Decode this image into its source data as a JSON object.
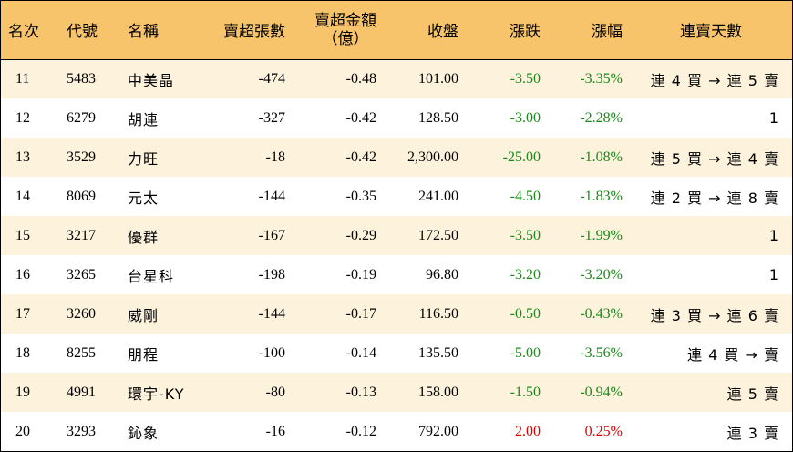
{
  "headers": {
    "rank": "名次",
    "code": "代號",
    "name": "名稱",
    "net_sell_qty": "賣超張數",
    "net_sell_amount_line1": "賣超金額",
    "net_sell_amount_line2": "（億）",
    "close": "收盤",
    "change": "漲跌",
    "change_pct": "漲幅",
    "streak": "連賣天數"
  },
  "colors": {
    "down": "#1a8a1a",
    "up": "#e00000",
    "header_bg": "#f7c36b",
    "stripe_bg": "#fdf2dc"
  },
  "rows": [
    {
      "rank": "11",
      "code": "5483",
      "name": "中美晶",
      "qty": "-474",
      "amount": "-0.48",
      "close": "101.00",
      "change": "-3.50",
      "pct": "-3.35%",
      "dir": "down",
      "streak": "連 4 買 → 連 5 賣"
    },
    {
      "rank": "12",
      "code": "6279",
      "name": "胡連",
      "qty": "-327",
      "amount": "-0.42",
      "close": "128.50",
      "change": "-3.00",
      "pct": "-2.28%",
      "dir": "down",
      "streak": "1"
    },
    {
      "rank": "13",
      "code": "3529",
      "name": "力旺",
      "qty": "-18",
      "amount": "-0.42",
      "close": "2,300.00",
      "change": "-25.00",
      "pct": "-1.08%",
      "dir": "down",
      "streak": "連 5 買 → 連 4 賣"
    },
    {
      "rank": "14",
      "code": "8069",
      "name": "元太",
      "qty": "-144",
      "amount": "-0.35",
      "close": "241.00",
      "change": "-4.50",
      "pct": "-1.83%",
      "dir": "down",
      "streak": "連 2 買 → 連 8 賣"
    },
    {
      "rank": "15",
      "code": "3217",
      "name": "優群",
      "qty": "-167",
      "amount": "-0.29",
      "close": "172.50",
      "change": "-3.50",
      "pct": "-1.99%",
      "dir": "down",
      "streak": "1"
    },
    {
      "rank": "16",
      "code": "3265",
      "name": "台星科",
      "qty": "-198",
      "amount": "-0.19",
      "close": "96.80",
      "change": "-3.20",
      "pct": "-3.20%",
      "dir": "down",
      "streak": "1"
    },
    {
      "rank": "17",
      "code": "3260",
      "name": "威剛",
      "qty": "-144",
      "amount": "-0.17",
      "close": "116.50",
      "change": "-0.50",
      "pct": "-0.43%",
      "dir": "down",
      "streak": "連 3 買 → 連 6 賣"
    },
    {
      "rank": "18",
      "code": "8255",
      "name": "朋程",
      "qty": "-100",
      "amount": "-0.14",
      "close": "135.50",
      "change": "-5.00",
      "pct": "-3.56%",
      "dir": "down",
      "streak": "連 4 買 → 賣"
    },
    {
      "rank": "19",
      "code": "4991",
      "name": "環宇-KY",
      "qty": "-80",
      "amount": "-0.13",
      "close": "158.00",
      "change": "-1.50",
      "pct": "-0.94%",
      "dir": "down",
      "streak": "連 5 賣"
    },
    {
      "rank": "20",
      "code": "3293",
      "name": "鈊象",
      "qty": "-16",
      "amount": "-0.12",
      "close": "792.00",
      "change": "2.00",
      "pct": "0.25%",
      "dir": "up",
      "streak": "連 3 賣"
    }
  ]
}
